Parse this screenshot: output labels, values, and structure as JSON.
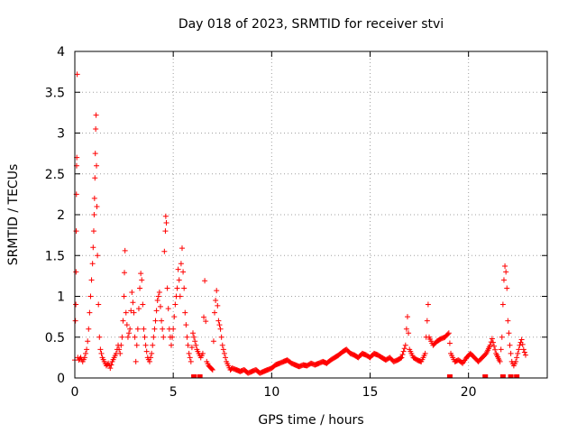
{
  "chart_data": {
    "type": "scatter",
    "title": "Day 018 of 2023, SRMTID for receiver stvi",
    "xlabel": "GPS time / hours",
    "ylabel": "SRMTID / TECUs",
    "xlim": [
      0,
      24
    ],
    "ylim": [
      0,
      4
    ],
    "xticks": [
      0,
      5,
      10,
      15,
      20
    ],
    "yticks": [
      0,
      0.5,
      1,
      1.5,
      2,
      2.5,
      3,
      3.5,
      4
    ],
    "xtick_labels": [
      "0",
      "5",
      "10",
      "15",
      "20"
    ],
    "ytick_labels": [
      "0",
      "0.5",
      "1",
      "1.5",
      "2",
      "2.5",
      "3",
      "3.5",
      "4"
    ],
    "grid": true,
    "marker": "plus",
    "color": "#ff0000",
    "series": [
      {
        "name": "SRMTID",
        "points": [
          [
            0.0,
            0.22
          ],
          [
            0.03,
            0.7
          ],
          [
            0.05,
            0.9
          ],
          [
            0.06,
            1.3
          ],
          [
            0.07,
            1.8
          ],
          [
            0.08,
            2.25
          ],
          [
            0.09,
            2.6
          ],
          [
            0.1,
            2.7
          ],
          [
            0.12,
            3.72
          ],
          [
            0.15,
            0.25
          ],
          [
            0.2,
            0.22
          ],
          [
            0.3,
            0.25
          ],
          [
            0.4,
            0.2
          ],
          [
            0.5,
            0.25
          ],
          [
            0.55,
            0.3
          ],
          [
            0.6,
            0.35
          ],
          [
            0.65,
            0.45
          ],
          [
            0.7,
            0.6
          ],
          [
            0.75,
            0.8
          ],
          [
            0.8,
            1.0
          ],
          [
            0.85,
            1.2
          ],
          [
            0.9,
            1.4
          ],
          [
            0.93,
            1.6
          ],
          [
            0.96,
            1.8
          ],
          [
            0.98,
            2.0
          ],
          [
            1.0,
            2.2
          ],
          [
            1.02,
            2.45
          ],
          [
            1.04,
            2.75
          ],
          [
            1.06,
            3.05
          ],
          [
            1.08,
            3.22
          ],
          [
            1.1,
            2.6
          ],
          [
            1.12,
            2.1
          ],
          [
            1.15,
            1.5
          ],
          [
            1.2,
            0.9
          ],
          [
            1.25,
            0.5
          ],
          [
            1.3,
            0.35
          ],
          [
            1.4,
            0.25
          ],
          [
            1.5,
            0.2
          ],
          [
            1.6,
            0.15
          ],
          [
            1.7,
            0.18
          ],
          [
            1.8,
            0.12
          ],
          [
            1.9,
            0.2
          ],
          [
            2.0,
            0.25
          ],
          [
            2.1,
            0.3
          ],
          [
            2.2,
            0.4
          ],
          [
            2.3,
            0.3
          ],
          [
            2.4,
            0.5
          ],
          [
            2.45,
            0.7
          ],
          [
            2.5,
            1.0
          ],
          [
            2.52,
            1.29
          ],
          [
            2.55,
            1.56
          ],
          [
            2.6,
            0.8
          ],
          [
            2.7,
            0.5
          ],
          [
            2.8,
            0.6
          ],
          [
            2.9,
            1.05
          ],
          [
            3.0,
            0.8
          ],
          [
            3.1,
            0.2
          ],
          [
            3.2,
            0.6
          ],
          [
            3.3,
            1.1
          ],
          [
            3.35,
            1.28
          ],
          [
            3.4,
            1.2
          ],
          [
            3.45,
            0.9
          ],
          [
            3.5,
            0.6
          ],
          [
            3.6,
            0.4
          ],
          [
            3.7,
            0.25
          ],
          [
            3.8,
            0.2
          ],
          [
            3.9,
            0.3
          ],
          [
            4.0,
            0.5
          ],
          [
            4.1,
            0.7
          ],
          [
            4.2,
            0.95
          ],
          [
            4.3,
            1.05
          ],
          [
            4.4,
            0.7
          ],
          [
            4.5,
            0.5
          ],
          [
            4.55,
            1.55
          ],
          [
            4.6,
            1.8
          ],
          [
            4.62,
            1.98
          ],
          [
            4.65,
            1.9
          ],
          [
            4.7,
            1.1
          ],
          [
            4.8,
            0.6
          ],
          [
            4.9,
            0.4
          ],
          [
            5.0,
            0.6
          ],
          [
            5.1,
            0.9
          ],
          [
            5.2,
            1.1
          ],
          [
            5.25,
            1.33
          ],
          [
            5.3,
            1.2
          ],
          [
            5.35,
            1.0
          ],
          [
            5.4,
            1.4
          ],
          [
            5.45,
            1.59
          ],
          [
            5.5,
            1.3
          ],
          [
            5.55,
            1.1
          ],
          [
            5.6,
            0.8
          ],
          [
            5.7,
            0.5
          ],
          [
            5.8,
            0.3
          ],
          [
            5.9,
            0.2
          ],
          [
            6.0,
            0.55
          ],
          [
            6.1,
            0.45
          ],
          [
            6.2,
            0.35
          ],
          [
            6.3,
            0.3
          ],
          [
            6.4,
            0.25
          ],
          [
            6.5,
            0.3
          ],
          [
            6.6,
            1.19
          ],
          [
            6.7,
            0.2
          ],
          [
            6.8,
            0.15
          ],
          [
            7.0,
            0.1
          ],
          [
            7.1,
            0.8
          ],
          [
            7.15,
            0.95
          ],
          [
            7.2,
            1.07
          ],
          [
            7.3,
            0.7
          ],
          [
            7.4,
            0.6
          ],
          [
            7.5,
            0.4
          ],
          [
            7.6,
            0.3
          ],
          [
            7.7,
            0.2
          ],
          [
            7.8,
            0.15
          ],
          [
            7.9,
            0.1
          ],
          [
            8.0,
            0.12
          ],
          [
            8.2,
            0.1
          ],
          [
            8.4,
            0.08
          ],
          [
            8.6,
            0.1
          ],
          [
            8.8,
            0.06
          ],
          [
            9.0,
            0.08
          ],
          [
            9.2,
            0.1
          ],
          [
            9.4,
            0.06
          ],
          [
            9.6,
            0.08
          ],
          [
            9.8,
            0.1
          ],
          [
            10.0,
            0.12
          ],
          [
            10.2,
            0.16
          ],
          [
            10.4,
            0.18
          ],
          [
            10.6,
            0.2
          ],
          [
            10.8,
            0.22
          ],
          [
            11.0,
            0.18
          ],
          [
            11.2,
            0.16
          ],
          [
            11.4,
            0.14
          ],
          [
            11.6,
            0.16
          ],
          [
            11.8,
            0.15
          ],
          [
            12.0,
            0.18
          ],
          [
            12.2,
            0.16
          ],
          [
            12.4,
            0.18
          ],
          [
            12.6,
            0.2
          ],
          [
            12.8,
            0.18
          ],
          [
            13.0,
            0.22
          ],
          [
            13.2,
            0.25
          ],
          [
            13.4,
            0.28
          ],
          [
            13.6,
            0.32
          ],
          [
            13.8,
            0.35
          ],
          [
            14.0,
            0.3
          ],
          [
            14.2,
            0.28
          ],
          [
            14.4,
            0.25
          ],
          [
            14.6,
            0.3
          ],
          [
            14.8,
            0.28
          ],
          [
            15.0,
            0.25
          ],
          [
            15.2,
            0.3
          ],
          [
            15.4,
            0.28
          ],
          [
            15.6,
            0.25
          ],
          [
            15.8,
            0.22
          ],
          [
            16.0,
            0.25
          ],
          [
            16.2,
            0.2
          ],
          [
            16.4,
            0.22
          ],
          [
            16.6,
            0.25
          ],
          [
            16.8,
            0.4
          ],
          [
            16.85,
            0.6
          ],
          [
            16.9,
            0.75
          ],
          [
            16.95,
            0.55
          ],
          [
            17.0,
            0.35
          ],
          [
            17.2,
            0.25
          ],
          [
            17.4,
            0.22
          ],
          [
            17.6,
            0.2
          ],
          [
            17.8,
            0.3
          ],
          [
            17.9,
            0.7
          ],
          [
            17.95,
            0.9
          ],
          [
            18.0,
            0.5
          ],
          [
            18.2,
            0.4
          ],
          [
            18.4,
            0.45
          ],
          [
            18.6,
            0.48
          ],
          [
            18.8,
            0.5
          ],
          [
            19.0,
            0.55
          ],
          [
            19.1,
            0.3
          ],
          [
            19.3,
            0.2
          ],
          [
            19.5,
            0.22
          ],
          [
            19.7,
            0.18
          ],
          [
            19.9,
            0.25
          ],
          [
            20.1,
            0.3
          ],
          [
            20.3,
            0.25
          ],
          [
            20.5,
            0.2
          ],
          [
            20.7,
            0.25
          ],
          [
            20.9,
            0.3
          ],
          [
            21.1,
            0.4
          ],
          [
            21.2,
            0.48
          ],
          [
            21.4,
            0.3
          ],
          [
            21.6,
            0.2
          ],
          [
            21.7,
            0.5
          ],
          [
            21.75,
            0.9
          ],
          [
            21.8,
            1.2
          ],
          [
            21.85,
            1.37
          ],
          [
            21.9,
            1.3
          ],
          [
            21.95,
            1.1
          ],
          [
            22.0,
            0.7
          ],
          [
            22.1,
            0.4
          ],
          [
            22.2,
            0.2
          ],
          [
            22.3,
            0.15
          ],
          [
            22.4,
            0.2
          ],
          [
            22.5,
            0.3
          ],
          [
            22.6,
            0.4
          ],
          [
            22.7,
            0.47
          ],
          [
            22.8,
            0.35
          ],
          [
            22.9,
            0.28
          ]
        ]
      }
    ],
    "floor_markers": [
      6.05,
      6.35,
      19.05,
      20.85,
      21.75,
      22.15,
      22.45
    ]
  }
}
